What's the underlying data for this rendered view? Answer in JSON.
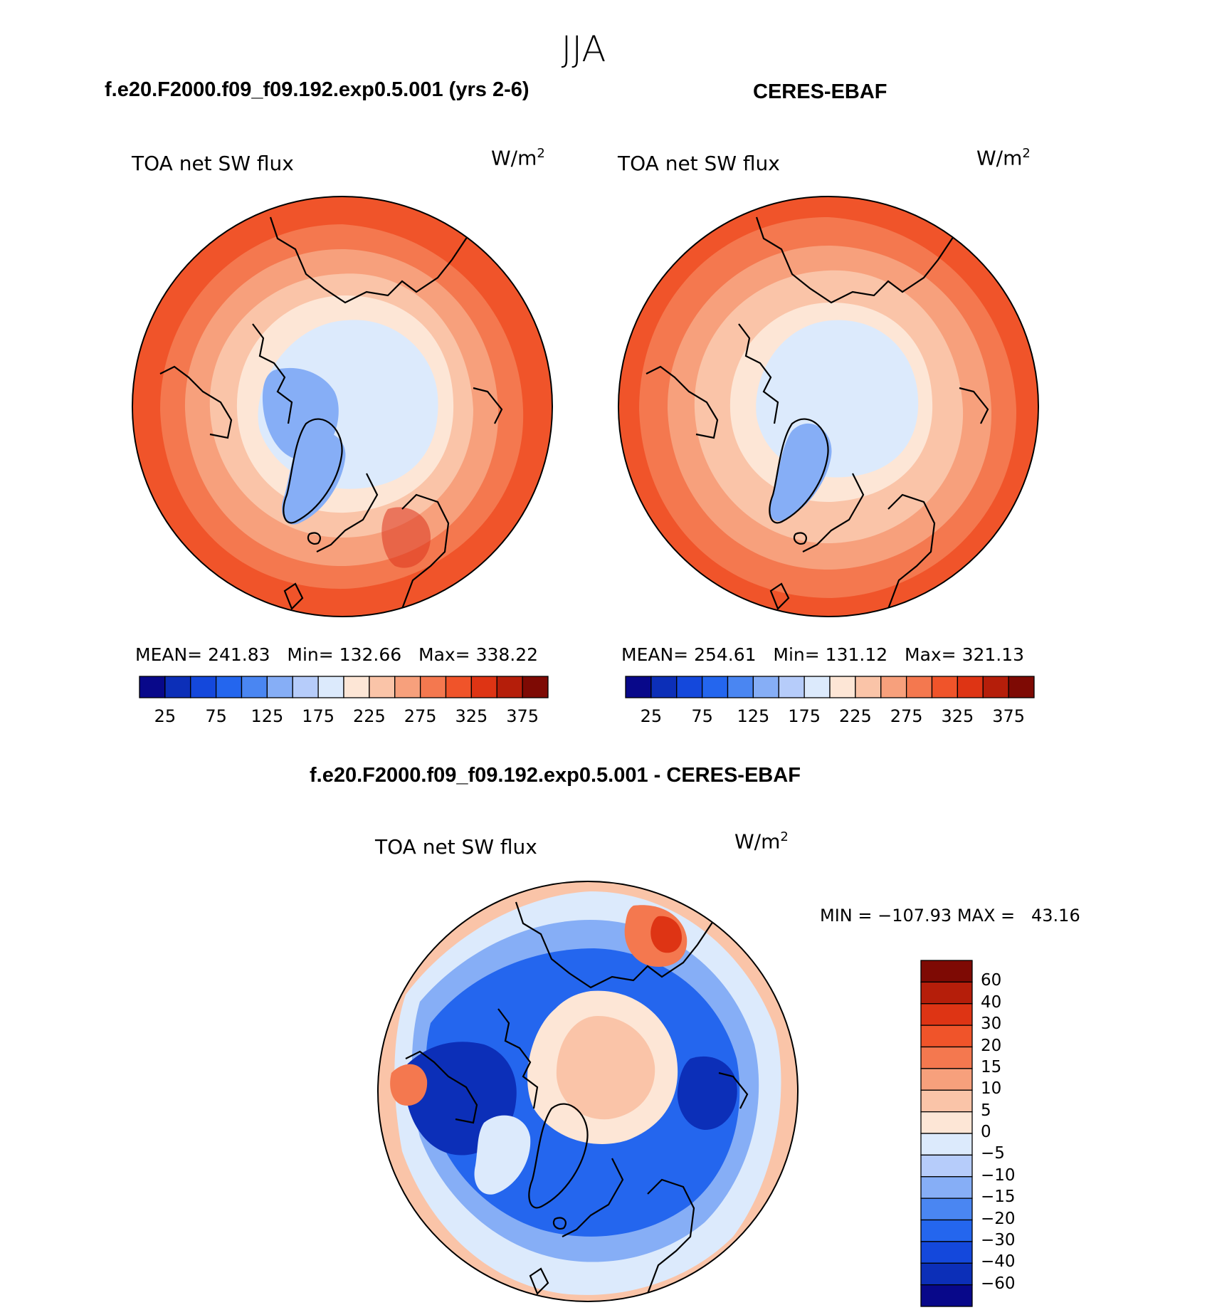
{
  "figure_title": "JJA",
  "palette": {
    "absolute_colors": [
      "#08088a",
      "#0c2fb8",
      "#1448dc",
      "#2466ee",
      "#4a86f2",
      "#86aef6",
      "#b6ccfa",
      "#dceafc",
      "#fde6d6",
      "#fac4a8",
      "#f7a07c",
      "#f4784f",
      "#f0542a",
      "#de3414",
      "#b51e0a",
      "#7e0a04"
    ],
    "absolute_ticks": [
      "25",
      "75",
      "125",
      "175",
      "225",
      "275",
      "325",
      "375"
    ],
    "difference_colors": [
      "#7e0a04",
      "#b51e0a",
      "#de3414",
      "#f0542a",
      "#f4784f",
      "#f7a07c",
      "#fac4a8",
      "#fde6d6",
      "#dceafc",
      "#b6ccfa",
      "#86aef6",
      "#4a86f2",
      "#2466ee",
      "#1448dc",
      "#0c2fb8",
      "#08088a"
    ],
    "difference_ticks": [
      "60",
      "40",
      "30",
      "20",
      "15",
      "10",
      "5",
      "0",
      "−5",
      "−10",
      "−15",
      "−20",
      "−30",
      "−40",
      "−60"
    ]
  },
  "chart_data": [
    {
      "type": "heatmap",
      "projection": "north polar stereographic",
      "season": "JJA",
      "title": "f.e20.F2000.f09_f09.192.exp0.5.001 (yrs 2-6)",
      "variable": "TOA net SW flux",
      "units": "W/m",
      "units_superscript": "2",
      "stats": {
        "mean_label": "MEAN=",
        "mean": "241.83",
        "min_label": "Min=",
        "min": "132.66",
        "max_label": "Max=",
        "max": "338.22"
      },
      "colorbar_ticks": [
        "25",
        "75",
        "125",
        "175",
        "225",
        "275",
        "325",
        "375"
      ],
      "contour_levels": [
        25,
        50,
        75,
        100,
        125,
        150,
        175,
        200,
        225,
        250,
        275,
        300,
        325,
        350,
        375
      ]
    },
    {
      "type": "heatmap",
      "projection": "north polar stereographic",
      "season": "JJA",
      "title": "CERES-EBAF",
      "variable": "TOA net SW flux",
      "units": "W/m",
      "units_superscript": "2",
      "stats": {
        "mean_label": "MEAN=",
        "mean": "254.61",
        "min_label": "Min=",
        "min": "131.12",
        "max_label": "Max=",
        "max": "321.13"
      },
      "colorbar_ticks": [
        "25",
        "75",
        "125",
        "175",
        "225",
        "275",
        "325",
        "375"
      ],
      "contour_levels": [
        25,
        50,
        75,
        100,
        125,
        150,
        175,
        200,
        225,
        250,
        275,
        300,
        325,
        350,
        375
      ]
    },
    {
      "type": "heatmap",
      "projection": "north polar stereographic",
      "season": "JJA",
      "title": "f.e20.F2000.f09_f09.192.exp0.5.001 - CERES-EBAF",
      "variable": "TOA net SW flux",
      "units": "W/m",
      "units_superscript": "2",
      "stats_line": "MIN = −107.93 MAX =   43.16",
      "colorbar_ticks": [
        "60",
        "40",
        "30",
        "20",
        "15",
        "10",
        "5",
        "0",
        "−5",
        "−10",
        "−15",
        "−20",
        "−30",
        "−40",
        "−60"
      ],
      "contour_levels": [
        -60,
        -40,
        -30,
        -20,
        -15,
        -10,
        -5,
        0,
        5,
        10,
        15,
        20,
        30,
        40,
        60
      ]
    }
  ]
}
